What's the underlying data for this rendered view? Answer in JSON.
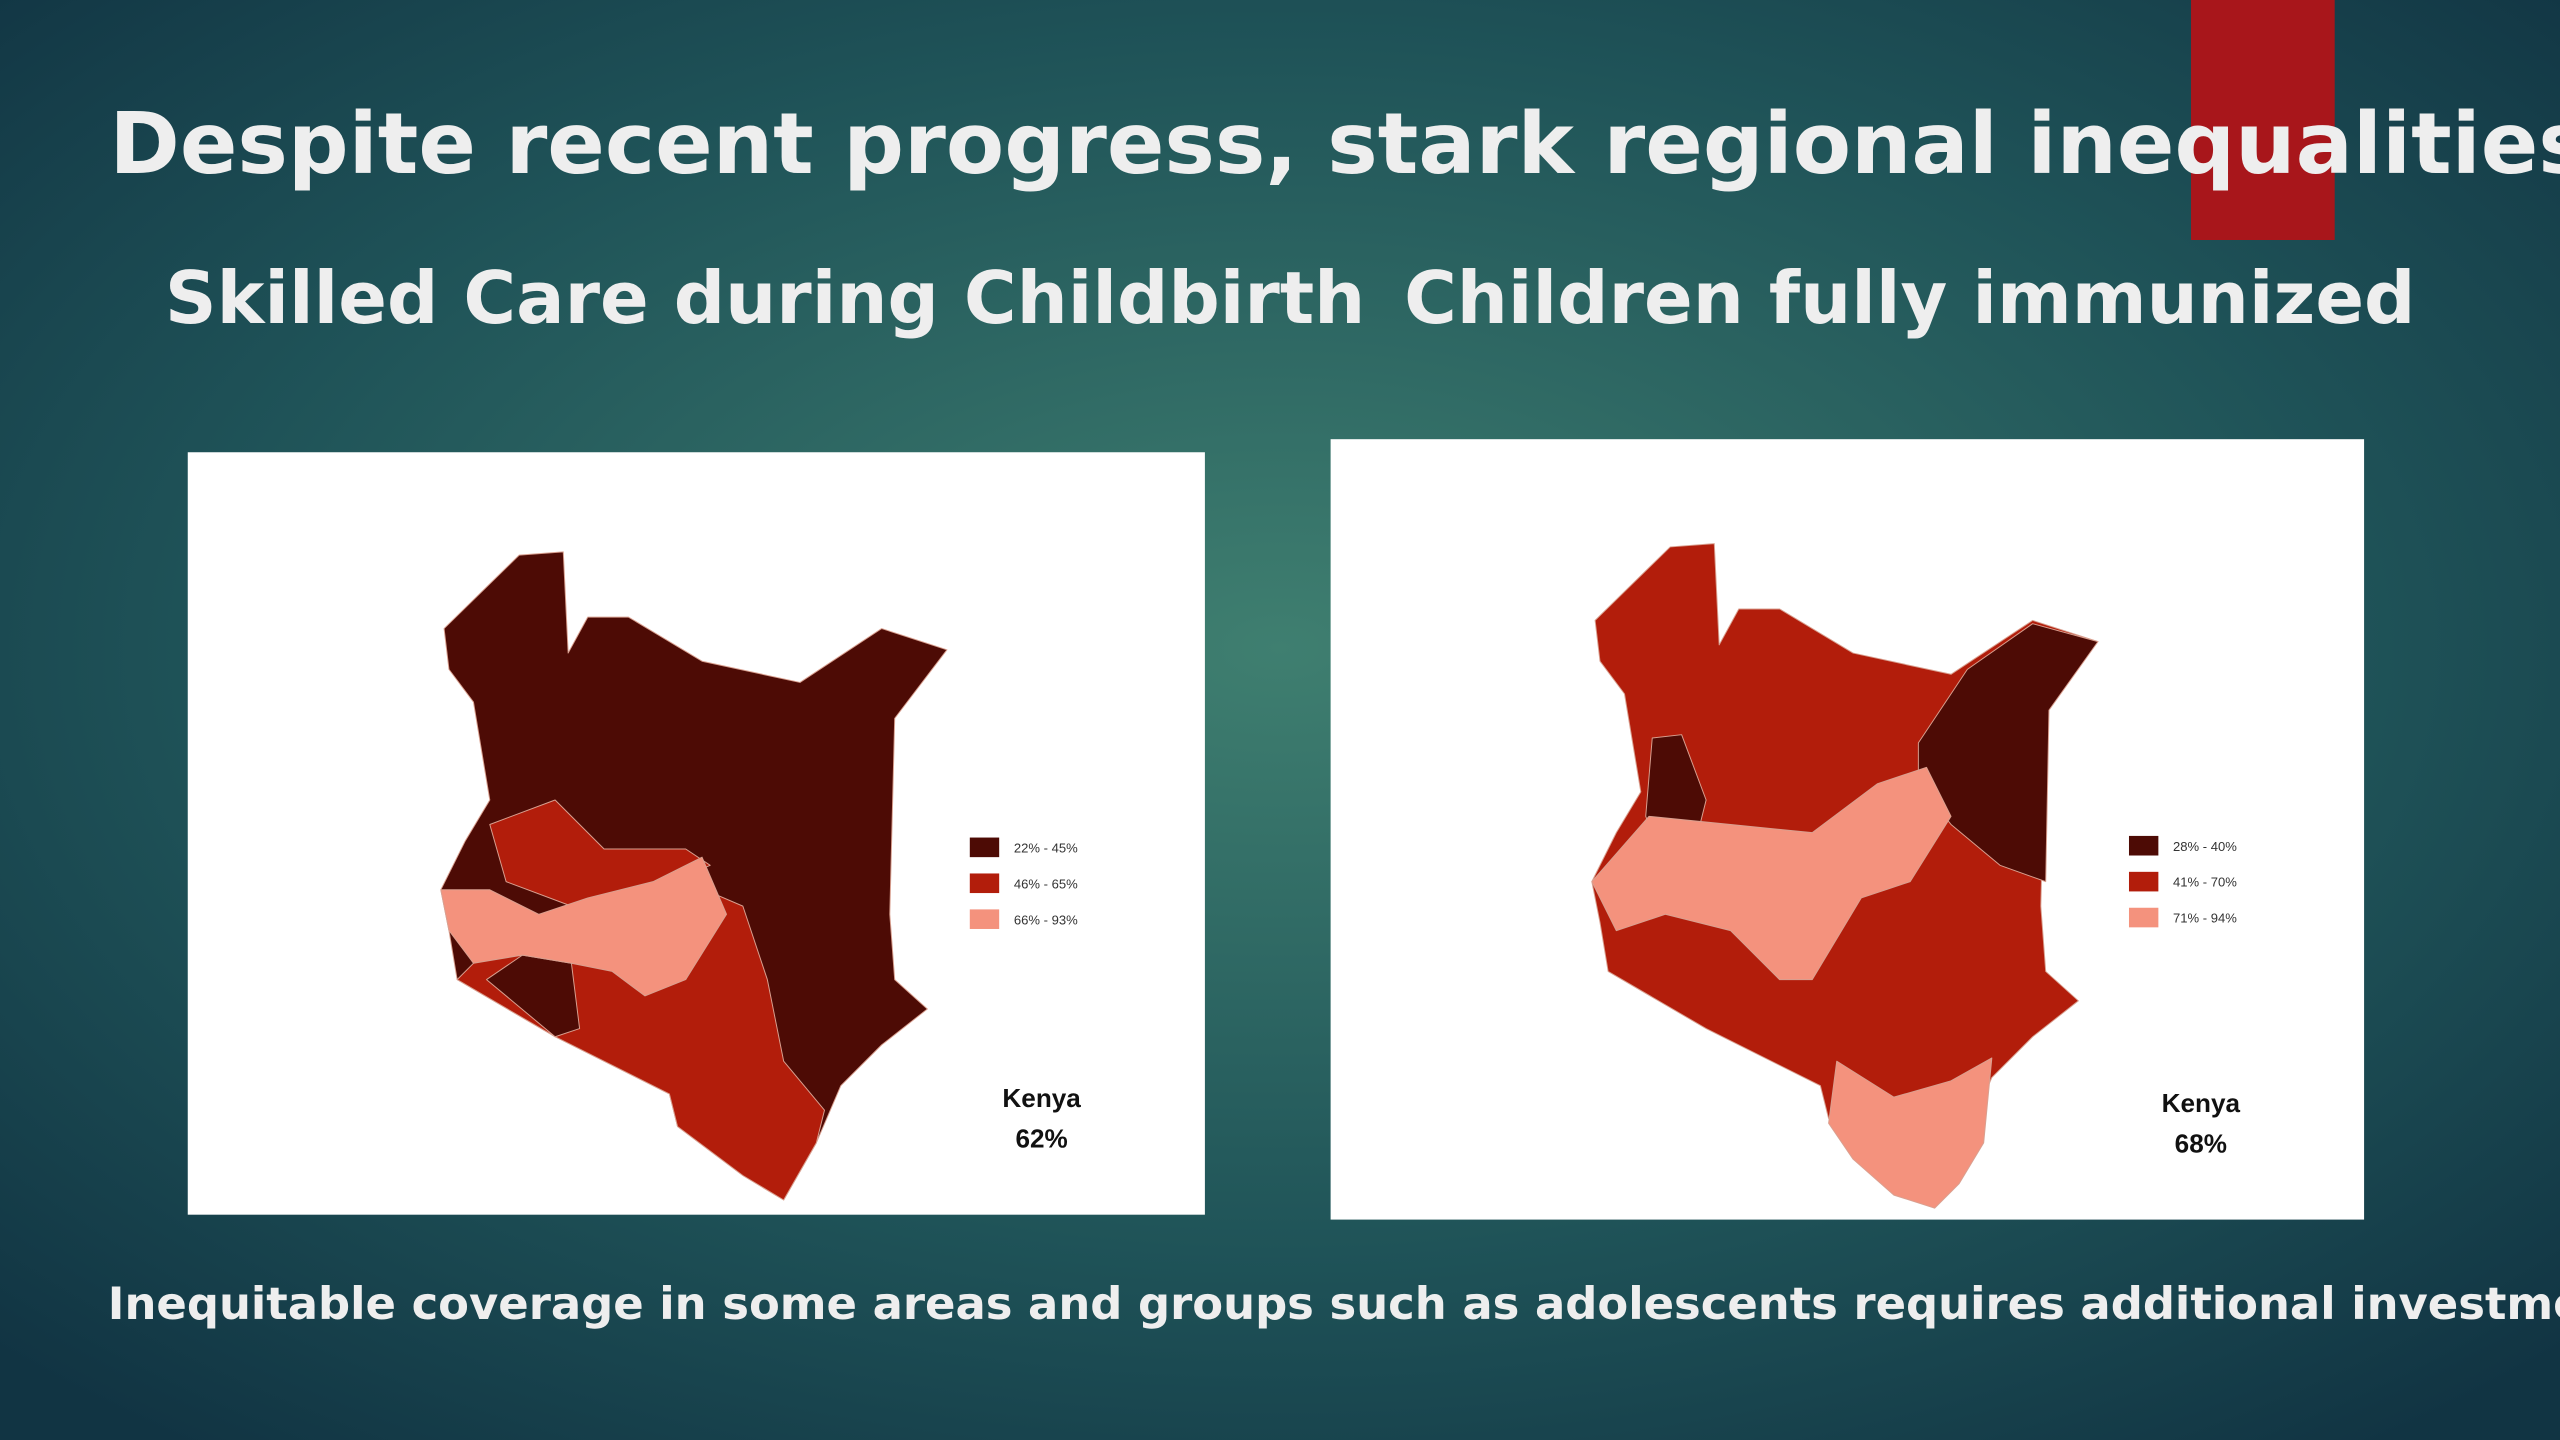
{
  "title": "Despite recent progress, stark regional inequalities",
  "panels": [
    {
      "subtitle": "Skilled Care during Childbirth",
      "legend": [
        {
          "label": "22% - 45%",
          "color": "#4d0b05"
        },
        {
          "label": "46% - 65%",
          "color": "#b21d0b"
        },
        {
          "label": "66% - 93%",
          "color": "#f4927d"
        }
      ],
      "summary": [
        "Kenya",
        "62%"
      ]
    },
    {
      "subtitle": "Children fully immunized",
      "legend": [
        {
          "label": "28% - 40%",
          "color": "#4d0b05"
        },
        {
          "label": "41% - 70%",
          "color": "#b21d0b"
        },
        {
          "label": "71% - 94%",
          "color": "#f4927d"
        }
      ],
      "summary": [
        "Kenya",
        "68%"
      ]
    }
  ],
  "footer": "Inequitable coverage  in some areas and groups such as adolescents requires additional investments."
}
